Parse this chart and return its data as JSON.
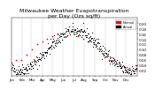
{
  "title": "Milwaukee Weather Evapotranspiration\nper Day (Ozs sq/ft)",
  "title_fontsize": 4.5,
  "bg_color": "#ffffff",
  "plot_bg": "#ffffff",
  "dot_color_actual": "#000000",
  "dot_color_ref": "#ff0000",
  "legend_label_actual": "Actual",
  "legend_label_ref": "Normal",
  "ylim": [
    0.0,
    0.22
  ],
  "yticks": [
    0.02,
    0.04,
    0.06,
    0.08,
    0.1,
    0.12,
    0.14,
    0.16,
    0.18,
    0.2
  ],
  "ytick_fontsize": 3.0,
  "xtick_fontsize": 2.8,
  "grid_color": "#aaaaaa",
  "vline_positions": [
    31,
    59,
    90,
    120,
    151,
    181,
    212,
    243,
    273,
    304,
    334
  ],
  "ref_x": [
    1,
    15,
    30,
    45,
    60,
    75,
    90,
    105,
    120,
    135,
    150,
    165,
    180,
    195,
    210,
    225,
    240,
    255,
    270,
    285,
    300,
    315,
    330,
    345,
    365
  ],
  "ref_y": [
    0.05,
    0.06,
    0.06,
    0.08,
    0.1,
    0.12,
    0.13,
    0.14,
    0.15,
    0.16,
    0.16,
    0.17,
    0.17,
    0.15,
    0.14,
    0.13,
    0.12,
    0.1,
    0.08,
    0.06,
    0.05,
    0.04,
    0.03,
    0.03,
    0.04
  ],
  "month_labels": [
    "Jan",
    "",
    "Feb",
    "",
    "Mar",
    "",
    "Apr",
    "",
    "May",
    "",
    "Jun",
    "",
    "Jul",
    "",
    "Aug",
    "",
    "Sep",
    "",
    "Oct",
    "",
    "Nov",
    "",
    "Dec",
    ""
  ],
  "month_tick_positions": [
    1,
    16,
    32,
    46,
    60,
    75,
    91,
    106,
    121,
    136,
    152,
    166,
    182,
    197,
    213,
    228,
    244,
    258,
    274,
    288,
    305,
    320,
    335,
    350
  ]
}
